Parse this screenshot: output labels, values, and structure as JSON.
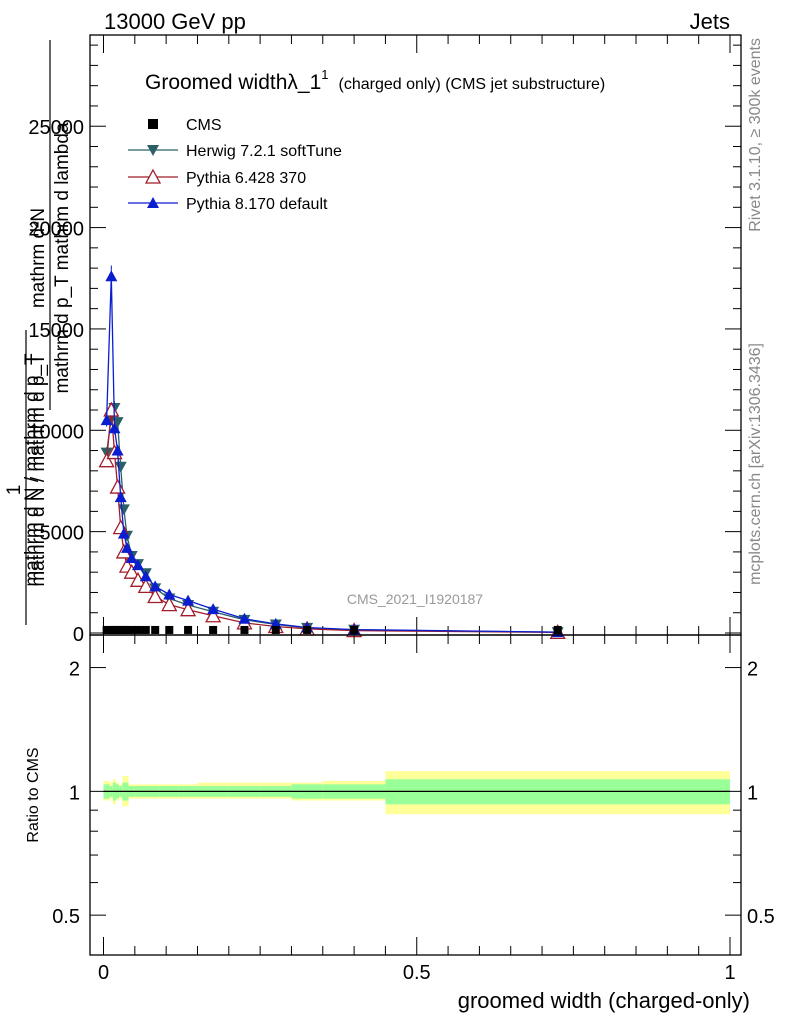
{
  "header": {
    "left": "13000 GeV pp",
    "right": "Jets",
    "side_top": "Rivet 3.1.10, ≥ 300k events",
    "side_bottom": "mcplots.cern.ch [arXiv:1306.3436]",
    "watermark": "CMS_2021_I1920187"
  },
  "main_plot": {
    "title_main": "Groomed widthλ_1",
    "title_sup": "1",
    "title_sub": "(charged only) (CMS jet substructure)",
    "ylabel_top": "mathrm d²N",
    "ylabel_bottom": "mathrm d p_T mathrm d lambda",
    "ylabel_one": "1",
    "ylabel_frac_top": "mathrm d N / mathrm d p_T",
    "ylabel_frac_bottom": "mathrm d N / mathrm d p_T",
    "ytick_labels": [
      "0",
      "5000",
      "10000",
      "15000",
      "20000",
      "25000"
    ]
  },
  "ratio_plot": {
    "ylabel": "Ratio to CMS",
    "ytick_labels": [
      "0.5",
      "1",
      "2"
    ]
  },
  "legend": {
    "cms": "CMS",
    "herwig": "Herwig 7.2.1 softTune",
    "py6": "Pythia 6.428 370",
    "py8": "Pythia 8.170 default"
  },
  "xaxis": {
    "label": "groomed width (charged-only)",
    "tick_labels": [
      "0",
      "0.5",
      "1"
    ]
  },
  "colors": {
    "herwig": "#2b6066",
    "py6": "#a11d2b",
    "py8": "#0a1ecf",
    "band_outer": "#ffff99",
    "band_inner": "#99ff99"
  },
  "chart_data": {
    "type": "line",
    "xlim": [
      0,
      1
    ],
    "ylim": [
      0,
      29500
    ],
    "ratio_ylim": [
      0.4,
      2.4
    ],
    "ratio_scale": "log",
    "bin_edges": [
      0.0,
      0.01,
      0.015,
      0.02,
      0.025,
      0.03,
      0.035,
      0.04,
      0.05,
      0.06,
      0.075,
      0.09,
      0.12,
      0.15,
      0.2,
      0.25,
      0.3,
      0.35,
      0.45,
      1.0
    ],
    "x": [
      0.005,
      0.0125,
      0.0175,
      0.0225,
      0.0275,
      0.0325,
      0.0375,
      0.045,
      0.055,
      0.0675,
      0.0825,
      0.105,
      0.135,
      0.175,
      0.225,
      0.275,
      0.325,
      0.4,
      0.725
    ],
    "cms_values": [
      150,
      150,
      150,
      150,
      150,
      150,
      150,
      150,
      150,
      150,
      150,
      150,
      150,
      150,
      150,
      150,
      150,
      150,
      150
    ],
    "series": [
      {
        "name": "Herwig 7.2.1 softTune",
        "values": [
          8900,
          10600,
          11100,
          10400,
          8200,
          6100,
          4800,
          3800,
          3400,
          2950,
          2200,
          1700,
          1380,
          1050,
          650,
          420,
          250,
          160,
          40
        ]
      },
      {
        "name": "Pythia 6.428 370",
        "values": [
          8500,
          11000,
          8900,
          7200,
          5200,
          4000,
          3300,
          3000,
          2600,
          2300,
          1800,
          1400,
          1150,
          850,
          500,
          320,
          200,
          120,
          30
        ]
      },
      {
        "name": "Pythia 8.170 default",
        "values": [
          10500,
          17600,
          10100,
          9000,
          6700,
          4900,
          4200,
          3700,
          3350,
          2800,
          2300,
          1900,
          1600,
          1180,
          700,
          450,
          270,
          170,
          45
        ]
      }
    ],
    "ratio_band_inner": [
      [
        0.96,
        1.04
      ],
      [
        0.97,
        1.03
      ],
      [
        0.95,
        1.05
      ],
      [
        0.96,
        1.04
      ],
      [
        0.97,
        1.03
      ],
      [
        0.95,
        1.05
      ],
      [
        0.95,
        1.05
      ],
      [
        0.97,
        1.03
      ],
      [
        0.97,
        1.03
      ],
      [
        0.97,
        1.03
      ],
      [
        0.97,
        1.03
      ],
      [
        0.97,
        1.03
      ],
      [
        0.97,
        1.03
      ],
      [
        0.97,
        1.03
      ],
      [
        0.97,
        1.03
      ],
      [
        0.97,
        1.03
      ],
      [
        0.96,
        1.04
      ],
      [
        0.96,
        1.04
      ],
      [
        0.93,
        1.07
      ]
    ],
    "ratio_band_outer": [
      [
        0.95,
        1.06
      ],
      [
        0.96,
        1.05
      ],
      [
        0.93,
        1.07
      ],
      [
        0.95,
        1.05
      ],
      [
        0.96,
        1.04
      ],
      [
        0.92,
        1.09
      ],
      [
        0.92,
        1.09
      ],
      [
        0.96,
        1.04
      ],
      [
        0.96,
        1.04
      ],
      [
        0.96,
        1.04
      ],
      [
        0.96,
        1.04
      ],
      [
        0.96,
        1.04
      ],
      [
        0.96,
        1.04
      ],
      [
        0.96,
        1.05
      ],
      [
        0.96,
        1.05
      ],
      [
        0.96,
        1.05
      ],
      [
        0.95,
        1.05
      ],
      [
        0.95,
        1.06
      ],
      [
        0.88,
        1.12
      ]
    ],
    "ratio_lines": [
      1.0,
      1.0,
      1.0,
      1.0,
      1.0,
      1.0,
      1.0,
      1.0,
      1.0,
      1.0,
      1.0,
      1.0,
      1.0,
      1.0,
      1.0,
      1.0,
      1.0,
      1.0,
      1.0
    ]
  }
}
